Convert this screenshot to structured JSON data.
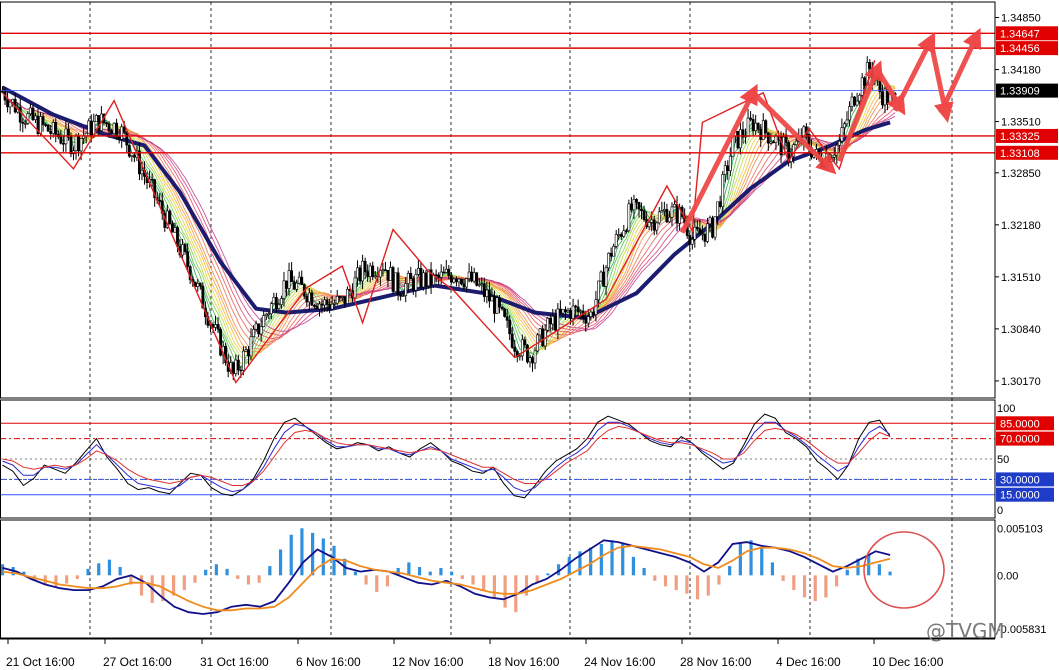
{
  "watermark": "@TVGM",
  "colors": {
    "candle": "#000000",
    "hline_red": "#e00000",
    "hline_blue": "#3050ff",
    "ma_slow": "#1c1c6e",
    "osc_k": "#000000",
    "osc_d1": "#2a2ad0",
    "osc_d2": "#e03030",
    "macd_pos": "#2f8fe0",
    "macd_neg": "#f0a080",
    "macd_line": "#10108a",
    "signal_line": "#f08c1e"
  },
  "chart_data": [
    {
      "type": "candlestick",
      "panel": "price",
      "ylim": [
        1.2995,
        1.3505
      ],
      "y_ticks": [
        "1.34850",
        "1.34180",
        "1.33510",
        "1.32850",
        "1.32180",
        "1.31510",
        "1.30840",
        "1.30170"
      ],
      "x_ticks": [
        "21 Oct 16:00",
        "27 Oct 16:00",
        "31 Oct 16:00",
        "6 Nov 16:00",
        "12 Nov 16:00",
        "18 Nov 16:00",
        "24 Nov 16:00",
        "28 Nov 16:00",
        "4 Dec 16:00",
        "10 Dec 16:00"
      ],
      "price_path": [
        [
          0,
          1.339
        ],
        [
          8,
          1.336
        ],
        [
          18,
          1.334
        ],
        [
          28,
          1.3322
        ],
        [
          38,
          1.3352
        ],
        [
          46,
          1.3343
        ],
        [
          54,
          1.3295
        ],
        [
          64,
          1.3228
        ],
        [
          74,
          1.316
        ],
        [
          84,
          1.3078
        ],
        [
          91,
          1.3024
        ],
        [
          97,
          1.306
        ],
        [
          104,
          1.3104
        ],
        [
          112,
          1.3146
        ],
        [
          120,
          1.3132
        ],
        [
          126,
          1.3116
        ],
        [
          134,
          1.3118
        ],
        [
          142,
          1.3159
        ],
        [
          150,
          1.3168
        ],
        [
          156,
          1.3136
        ],
        [
          164,
          1.3148
        ],
        [
          170,
          1.3146
        ],
        [
          178,
          1.3156
        ],
        [
          186,
          1.3144
        ],
        [
          194,
          1.3116
        ],
        [
          202,
          1.3066
        ],
        [
          208,
          1.305
        ],
        [
          216,
          1.309
        ],
        [
          224,
          1.3108
        ],
        [
          232,
          1.3102
        ],
        [
          240,
          1.3184
        ],
        [
          248,
          1.3238
        ],
        [
          256,
          1.3224
        ],
        [
          262,
          1.3236
        ],
        [
          268,
          1.323
        ],
        [
          272,
          1.32
        ],
        [
          280,
          1.3215
        ],
        [
          288,
          1.3322
        ],
        [
          296,
          1.335
        ],
        [
          304,
          1.333
        ],
        [
          310,
          1.331
        ],
        [
          316,
          1.3332
        ],
        [
          322,
          1.33
        ],
        [
          330,
          1.3323
        ],
        [
          336,
          1.3385
        ],
        [
          342,
          1.342
        ],
        [
          346,
          1.339
        ],
        [
          350,
          1.3378
        ]
      ],
      "moving_average_slow": [
        [
          0,
          1.3395
        ],
        [
          20,
          1.336
        ],
        [
          40,
          1.3335
        ],
        [
          56,
          1.332
        ],
        [
          70,
          1.326
        ],
        [
          86,
          1.317
        ],
        [
          100,
          1.311
        ],
        [
          112,
          1.3105
        ],
        [
          130,
          1.311
        ],
        [
          150,
          1.3125
        ],
        [
          170,
          1.314
        ],
        [
          190,
          1.313
        ],
        [
          210,
          1.3105
        ],
        [
          230,
          1.3098
        ],
        [
          250,
          1.313
        ],
        [
          265,
          1.318
        ],
        [
          280,
          1.322
        ],
        [
          295,
          1.3265
        ],
        [
          310,
          1.33
        ],
        [
          325,
          1.3318
        ],
        [
          340,
          1.334
        ],
        [
          350,
          1.335
        ]
      ],
      "horizontal_levels": [
        {
          "label": "1.34647",
          "value": 1.34647,
          "color": "#e00000"
        },
        {
          "label": "1.34456",
          "value": 1.34456,
          "color": "#e00000"
        },
        {
          "label": "1.33909",
          "value": 1.33909,
          "color": "#3050ff"
        },
        {
          "label": "1.33325",
          "value": 1.33325,
          "color": "#e00000"
        },
        {
          "label": "1.33108",
          "value": 1.33108,
          "color": "#e00000"
        }
      ],
      "zigzag": [
        [
          0,
          1.3388
        ],
        [
          28,
          1.329
        ],
        [
          44,
          1.3378
        ],
        [
          92,
          1.3015
        ],
        [
          120,
          1.3137
        ],
        [
          134,
          1.3165
        ],
        [
          142,
          1.3092
        ],
        [
          154,
          1.3212
        ],
        [
          168,
          1.3158
        ],
        [
          178,
          1.3133
        ],
        [
          202,
          1.3047
        ],
        [
          238,
          1.3122
        ],
        [
          262,
          1.3268
        ],
        [
          272,
          1.321
        ],
        [
          276,
          1.335
        ],
        [
          300,
          1.3388
        ],
        [
          310,
          1.33
        ],
        [
          318,
          1.3342
        ],
        [
          330,
          1.329
        ],
        [
          344,
          1.343
        ]
      ],
      "arrows": [
        [
          [
            268,
            1.3208
          ],
          [
            296,
            1.3388
          ]
        ],
        [
          [
            296,
            1.3388
          ],
          [
            326,
            1.3292
          ]
        ],
        [
          [
            330,
            1.33
          ],
          [
            345,
            1.3418
          ]
        ],
        [
          [
            345,
            1.3418
          ],
          [
            354,
            1.337
          ]
        ],
        [
          [
            352,
            1.3365
          ],
          [
            366,
            1.3455
          ]
        ],
        [
          [
            366,
            1.3455
          ],
          [
            372,
            1.3362
          ]
        ],
        [
          [
            370,
            1.3362
          ],
          [
            384,
            1.346
          ]
        ]
      ]
    },
    {
      "type": "line",
      "panel": "oscillator",
      "ylim": [
        0,
        100
      ],
      "y_ticks": [
        "100",
        "50",
        "0"
      ],
      "levels": [
        {
          "label": "85.0000",
          "value": 85,
          "color": "#e00000",
          "style": "solid"
        },
        {
          "label": "70.0000",
          "value": 70,
          "color": "#e00000",
          "style": "dashdot"
        },
        {
          "label": "30.0000",
          "value": 30,
          "color": "#3050ff",
          "style": "dashdot"
        },
        {
          "label": "15.0000",
          "value": 15,
          "color": "#3050ff",
          "style": "solid"
        }
      ],
      "series": [
        {
          "values": [
            44,
            38,
            24,
            31,
            44,
            40,
            36,
            46,
            58,
            70,
            52,
            40,
            26,
            20,
            22,
            18,
            16,
            26,
            36,
            34,
            22,
            16,
            14,
            20,
            30,
            48,
            70,
            86,
            90,
            82,
            74,
            66,
            60,
            62,
            66,
            64,
            58,
            62,
            56,
            52,
            60,
            66,
            58,
            48,
            44,
            38,
            36,
            42,
            26,
            14,
            12,
            24,
            38,
            48,
            54,
            60,
            70,
            86,
            92,
            88,
            84,
            76,
            68,
            64,
            62,
            72,
            66,
            56,
            48,
            40,
            46,
            64,
            84,
            94,
            90,
            76,
            70,
            62,
            48,
            40,
            30,
            44,
            70,
            86,
            88,
            72
          ]
        },
        {
          "values": [
            48,
            44,
            34,
            34,
            42,
            42,
            40,
            44,
            54,
            64,
            54,
            44,
            34,
            26,
            24,
            22,
            20,
            24,
            32,
            34,
            28,
            22,
            18,
            20,
            28,
            42,
            60,
            76,
            84,
            82,
            76,
            68,
            62,
            62,
            64,
            64,
            60,
            60,
            56,
            54,
            58,
            62,
            58,
            50,
            46,
            42,
            38,
            40,
            32,
            22,
            18,
            22,
            32,
            42,
            50,
            56,
            64,
            78,
            86,
            86,
            82,
            76,
            70,
            66,
            64,
            68,
            66,
            58,
            52,
            46,
            48,
            60,
            76,
            86,
            86,
            78,
            72,
            64,
            54,
            46,
            38,
            44,
            62,
            76,
            82,
            74
          ]
        },
        {
          "values": [
            50,
            48,
            42,
            40,
            42,
            44,
            42,
            44,
            50,
            58,
            54,
            48,
            40,
            34,
            30,
            28,
            26,
            28,
            32,
            34,
            32,
            28,
            24,
            24,
            28,
            38,
            52,
            66,
            76,
            78,
            76,
            70,
            66,
            64,
            64,
            64,
            62,
            60,
            58,
            56,
            58,
            60,
            58,
            54,
            50,
            46,
            42,
            42,
            36,
            30,
            26,
            26,
            30,
            38,
            46,
            52,
            58,
            70,
            78,
            82,
            80,
            76,
            72,
            68,
            66,
            66,
            64,
            60,
            56,
            50,
            50,
            56,
            68,
            78,
            80,
            78,
            74,
            68,
            60,
            52,
            46,
            46,
            56,
            68,
            76,
            72
          ]
        }
      ]
    },
    {
      "type": "bar",
      "panel": "macd",
      "ylim": [
        -0.0068,
        0.006
      ],
      "y_ticks": [
        "0.005103",
        "0.00",
        "-0.005831"
      ],
      "histogram": [
        0.0012,
        0.0009,
        0.0004,
        -0.0006,
        -0.0011,
        -0.0013,
        -0.0009,
        -0.0004,
        0.0007,
        0.0013,
        0.0017,
        0.0009,
        -0.001,
        -0.0022,
        -0.003,
        -0.0028,
        -0.0022,
        -0.0016,
        -0.0008,
        0.0006,
        0.0012,
        0.0007,
        -0.0004,
        -0.001,
        -0.0008,
        0.001,
        0.0028,
        0.0044,
        0.0051,
        0.0046,
        0.004,
        0.0032,
        0.0018,
        0.0004,
        -0.001,
        -0.0018,
        -0.0012,
        0.0008,
        0.0014,
        0.0009,
        0.0004,
        0.0008,
        0.0004,
        -0.0004,
        -0.001,
        -0.0016,
        -0.0024,
        -0.0035,
        -0.004,
        -0.0022,
        -0.0008,
        0.0002,
        0.0012,
        0.002,
        0.0026,
        0.003,
        0.0034,
        0.0038,
        0.0034,
        0.002,
        0.0008,
        -0.0006,
        -0.0012,
        -0.0016,
        -0.002,
        -0.0026,
        -0.0022,
        -0.001,
        0.001,
        0.0036,
        0.0038,
        0.003,
        0.0014,
        -0.0006,
        -0.0016,
        -0.0024,
        -0.0028,
        -0.0024,
        -0.0012,
        0.0006,
        0.0018,
        0.0022,
        0.0012,
        0.0004
      ],
      "series": [
        {
          "values": [
            0.0008,
            0.0004,
            -0.0004,
            -0.001,
            -0.0014,
            -0.0016,
            -0.0016,
            -0.0012,
            -0.0004,
            0.0,
            -0.0008,
            -0.0022,
            -0.0034,
            -0.004,
            -0.0042,
            -0.004,
            -0.0034,
            -0.0032,
            -0.0034,
            -0.0028,
            -0.0008,
            0.0014,
            0.0028,
            0.002,
            0.0008,
            0.0004,
            0.0006,
            0.0004,
            -0.0002,
            -0.0008,
            -0.001,
            -0.0006,
            -0.0012,
            -0.002,
            -0.0024,
            -0.0026,
            -0.002,
            -0.001,
            -0.0004,
            0.0006,
            0.0018,
            0.0028,
            0.0038,
            0.0036,
            0.0032,
            0.0028,
            0.0024,
            0.002,
            0.0014,
            0.0004,
            0.0014,
            0.0034,
            0.0036,
            0.0032,
            0.003,
            0.0026,
            0.002,
            0.0012,
            0.0004,
            0.001,
            0.0018,
            0.0026,
            0.0022
          ]
        },
        {
          "values": [
            0.0004,
            0.0002,
            -0.0002,
            -0.0006,
            -0.001,
            -0.0012,
            -0.0014,
            -0.0014,
            -0.0012,
            -0.0008,
            -0.0008,
            -0.0012,
            -0.002,
            -0.0028,
            -0.0034,
            -0.0038,
            -0.0038,
            -0.0036,
            -0.0036,
            -0.0034,
            -0.0024,
            -0.0008,
            0.0008,
            0.0018,
            0.0016,
            0.001,
            0.0006,
            0.0004,
            0.0002,
            -0.0002,
            -0.0006,
            -0.0008,
            -0.001,
            -0.0014,
            -0.0018,
            -0.002,
            -0.002,
            -0.0016,
            -0.001,
            -0.0004,
            0.0004,
            0.0012,
            0.0022,
            0.003,
            0.0032,
            0.003,
            0.0028,
            0.0024,
            0.002,
            0.0012,
            0.0008,
            0.0016,
            0.0026,
            0.003,
            0.003,
            0.0028,
            0.0024,
            0.0018,
            0.001,
            0.0008,
            0.001,
            0.0014,
            0.0018
          ]
        }
      ]
    }
  ]
}
